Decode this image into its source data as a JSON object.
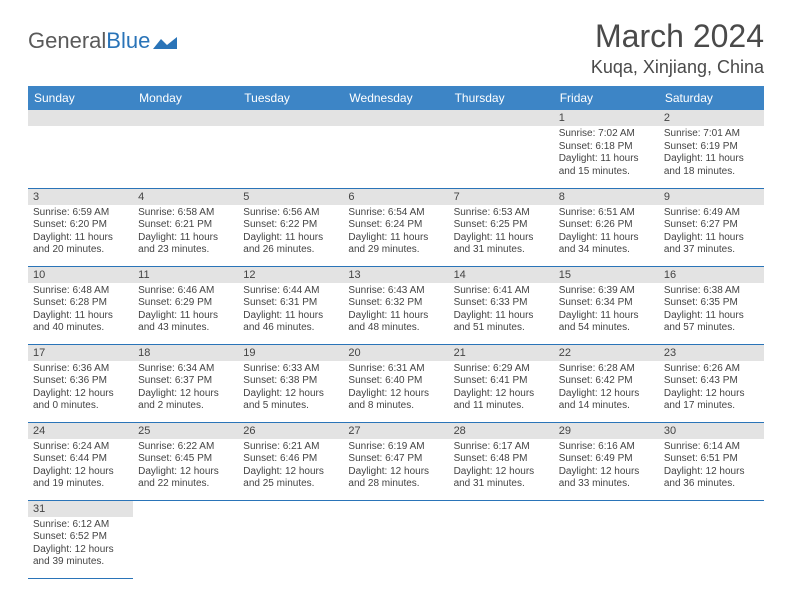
{
  "header": {
    "logo_gray": "General",
    "logo_blue": "Blue",
    "month_title": "March 2024",
    "location": "Kuqa, Xinjiang, China"
  },
  "colors": {
    "header_bg": "#3d85c6",
    "header_text": "#ffffff",
    "daynum_bg": "#e3e3e3",
    "row_border": "#2a74b8",
    "text": "#444444",
    "title_text": "#4a4a4a",
    "logo_blue": "#2a74b8",
    "logo_gray": "#5a5a5a"
  },
  "weekdays": [
    "Sunday",
    "Monday",
    "Tuesday",
    "Wednesday",
    "Thursday",
    "Friday",
    "Saturday"
  ],
  "weeks": [
    [
      {
        "num": "",
        "sr": "",
        "ss": "",
        "dl": ""
      },
      {
        "num": "",
        "sr": "",
        "ss": "",
        "dl": ""
      },
      {
        "num": "",
        "sr": "",
        "ss": "",
        "dl": ""
      },
      {
        "num": "",
        "sr": "",
        "ss": "",
        "dl": ""
      },
      {
        "num": "",
        "sr": "",
        "ss": "",
        "dl": ""
      },
      {
        "num": "1",
        "sr": "Sunrise: 7:02 AM",
        "ss": "Sunset: 6:18 PM",
        "dl": "Daylight: 11 hours and 15 minutes."
      },
      {
        "num": "2",
        "sr": "Sunrise: 7:01 AM",
        "ss": "Sunset: 6:19 PM",
        "dl": "Daylight: 11 hours and 18 minutes."
      }
    ],
    [
      {
        "num": "3",
        "sr": "Sunrise: 6:59 AM",
        "ss": "Sunset: 6:20 PM",
        "dl": "Daylight: 11 hours and 20 minutes."
      },
      {
        "num": "4",
        "sr": "Sunrise: 6:58 AM",
        "ss": "Sunset: 6:21 PM",
        "dl": "Daylight: 11 hours and 23 minutes."
      },
      {
        "num": "5",
        "sr": "Sunrise: 6:56 AM",
        "ss": "Sunset: 6:22 PM",
        "dl": "Daylight: 11 hours and 26 minutes."
      },
      {
        "num": "6",
        "sr": "Sunrise: 6:54 AM",
        "ss": "Sunset: 6:24 PM",
        "dl": "Daylight: 11 hours and 29 minutes."
      },
      {
        "num": "7",
        "sr": "Sunrise: 6:53 AM",
        "ss": "Sunset: 6:25 PM",
        "dl": "Daylight: 11 hours and 31 minutes."
      },
      {
        "num": "8",
        "sr": "Sunrise: 6:51 AM",
        "ss": "Sunset: 6:26 PM",
        "dl": "Daylight: 11 hours and 34 minutes."
      },
      {
        "num": "9",
        "sr": "Sunrise: 6:49 AM",
        "ss": "Sunset: 6:27 PM",
        "dl": "Daylight: 11 hours and 37 minutes."
      }
    ],
    [
      {
        "num": "10",
        "sr": "Sunrise: 6:48 AM",
        "ss": "Sunset: 6:28 PM",
        "dl": "Daylight: 11 hours and 40 minutes."
      },
      {
        "num": "11",
        "sr": "Sunrise: 6:46 AM",
        "ss": "Sunset: 6:29 PM",
        "dl": "Daylight: 11 hours and 43 minutes."
      },
      {
        "num": "12",
        "sr": "Sunrise: 6:44 AM",
        "ss": "Sunset: 6:31 PM",
        "dl": "Daylight: 11 hours and 46 minutes."
      },
      {
        "num": "13",
        "sr": "Sunrise: 6:43 AM",
        "ss": "Sunset: 6:32 PM",
        "dl": "Daylight: 11 hours and 48 minutes."
      },
      {
        "num": "14",
        "sr": "Sunrise: 6:41 AM",
        "ss": "Sunset: 6:33 PM",
        "dl": "Daylight: 11 hours and 51 minutes."
      },
      {
        "num": "15",
        "sr": "Sunrise: 6:39 AM",
        "ss": "Sunset: 6:34 PM",
        "dl": "Daylight: 11 hours and 54 minutes."
      },
      {
        "num": "16",
        "sr": "Sunrise: 6:38 AM",
        "ss": "Sunset: 6:35 PM",
        "dl": "Daylight: 11 hours and 57 minutes."
      }
    ],
    [
      {
        "num": "17",
        "sr": "Sunrise: 6:36 AM",
        "ss": "Sunset: 6:36 PM",
        "dl": "Daylight: 12 hours and 0 minutes."
      },
      {
        "num": "18",
        "sr": "Sunrise: 6:34 AM",
        "ss": "Sunset: 6:37 PM",
        "dl": "Daylight: 12 hours and 2 minutes."
      },
      {
        "num": "19",
        "sr": "Sunrise: 6:33 AM",
        "ss": "Sunset: 6:38 PM",
        "dl": "Daylight: 12 hours and 5 minutes."
      },
      {
        "num": "20",
        "sr": "Sunrise: 6:31 AM",
        "ss": "Sunset: 6:40 PM",
        "dl": "Daylight: 12 hours and 8 minutes."
      },
      {
        "num": "21",
        "sr": "Sunrise: 6:29 AM",
        "ss": "Sunset: 6:41 PM",
        "dl": "Daylight: 12 hours and 11 minutes."
      },
      {
        "num": "22",
        "sr": "Sunrise: 6:28 AM",
        "ss": "Sunset: 6:42 PM",
        "dl": "Daylight: 12 hours and 14 minutes."
      },
      {
        "num": "23",
        "sr": "Sunrise: 6:26 AM",
        "ss": "Sunset: 6:43 PM",
        "dl": "Daylight: 12 hours and 17 minutes."
      }
    ],
    [
      {
        "num": "24",
        "sr": "Sunrise: 6:24 AM",
        "ss": "Sunset: 6:44 PM",
        "dl": "Daylight: 12 hours and 19 minutes."
      },
      {
        "num": "25",
        "sr": "Sunrise: 6:22 AM",
        "ss": "Sunset: 6:45 PM",
        "dl": "Daylight: 12 hours and 22 minutes."
      },
      {
        "num": "26",
        "sr": "Sunrise: 6:21 AM",
        "ss": "Sunset: 6:46 PM",
        "dl": "Daylight: 12 hours and 25 minutes."
      },
      {
        "num": "27",
        "sr": "Sunrise: 6:19 AM",
        "ss": "Sunset: 6:47 PM",
        "dl": "Daylight: 12 hours and 28 minutes."
      },
      {
        "num": "28",
        "sr": "Sunrise: 6:17 AM",
        "ss": "Sunset: 6:48 PM",
        "dl": "Daylight: 12 hours and 31 minutes."
      },
      {
        "num": "29",
        "sr": "Sunrise: 6:16 AM",
        "ss": "Sunset: 6:49 PM",
        "dl": "Daylight: 12 hours and 33 minutes."
      },
      {
        "num": "30",
        "sr": "Sunrise: 6:14 AM",
        "ss": "Sunset: 6:51 PM",
        "dl": "Daylight: 12 hours and 36 minutes."
      }
    ],
    [
      {
        "num": "31",
        "sr": "Sunrise: 6:12 AM",
        "ss": "Sunset: 6:52 PM",
        "dl": "Daylight: 12 hours and 39 minutes."
      },
      {
        "num": "",
        "sr": "",
        "ss": "",
        "dl": ""
      },
      {
        "num": "",
        "sr": "",
        "ss": "",
        "dl": ""
      },
      {
        "num": "",
        "sr": "",
        "ss": "",
        "dl": ""
      },
      {
        "num": "",
        "sr": "",
        "ss": "",
        "dl": ""
      },
      {
        "num": "",
        "sr": "",
        "ss": "",
        "dl": ""
      },
      {
        "num": "",
        "sr": "",
        "ss": "",
        "dl": ""
      }
    ]
  ]
}
